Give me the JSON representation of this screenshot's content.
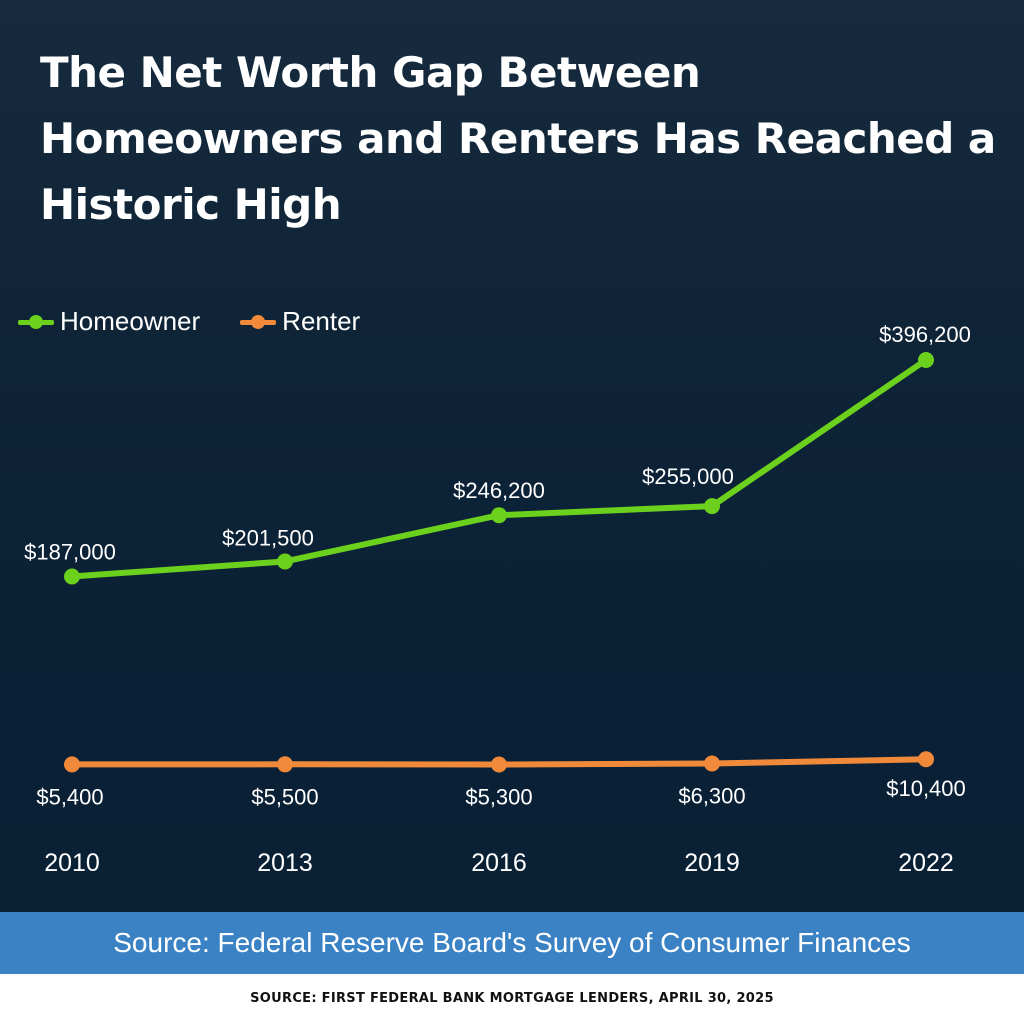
{
  "title": "The Net Worth Gap Between Homeowners and Renters Has Reached a Historic High",
  "source_bar": "Source: Federal Reserve Board's Survey of Consumer Finances",
  "footer": "SOURCE: FIRST FEDERAL BANK MORTGAGE LENDERS, APRIL 30, 2025",
  "chart_data": {
    "type": "line",
    "x": [
      "2010",
      "2013",
      "2016",
      "2019",
      "2022"
    ],
    "series": [
      {
        "name": "Homeowner",
        "color": "#6bd11d",
        "values": [
          187000,
          201500,
          246200,
          255000,
          396200
        ],
        "labels": [
          "$187,000",
          "$201,500",
          "$246,200",
          "$255,000",
          "$396,200"
        ]
      },
      {
        "name": "Renter",
        "color": "#f08a3a",
        "values": [
          5400,
          5500,
          5300,
          6300,
          10400
        ],
        "labels": [
          "$5,400",
          "$5,500",
          "$5,300",
          "$6,300",
          "$10,400"
        ]
      }
    ],
    "legend_position": "top-left",
    "grid": false,
    "ylim": [
      0,
      420000
    ]
  }
}
